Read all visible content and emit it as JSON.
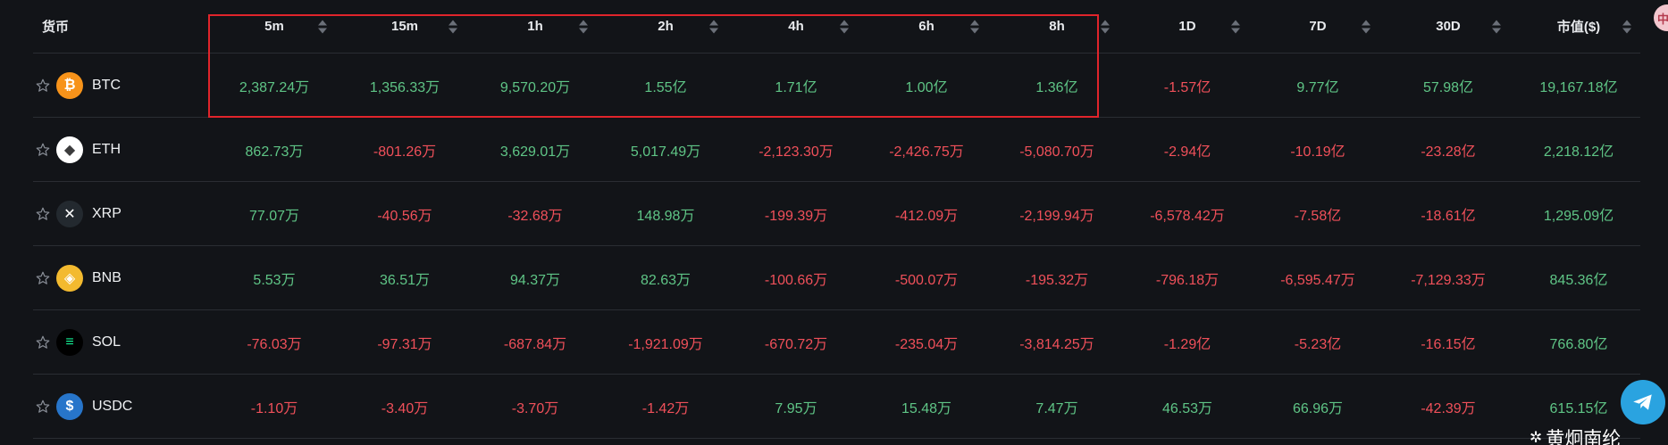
{
  "columns": [
    "货币",
    "5m",
    "15m",
    "1h",
    "2h",
    "4h",
    "6h",
    "8h",
    "1D",
    "7D",
    "30D",
    "市值($)"
  ],
  "rows": [
    {
      "symbol": "BTC",
      "logo_glyph": "₿",
      "logo_bg": "#f7931a",
      "logo_fg": "#ffffff",
      "values": [
        "2,387.24万",
        "1,356.33万",
        "9,570.20万",
        "1.55亿",
        "1.71亿",
        "1.00亿",
        "1.36亿",
        "-1.57亿",
        "9.77亿",
        "57.98亿",
        "19,167.18亿"
      ],
      "signs": [
        "pos",
        "pos",
        "pos",
        "pos",
        "pos",
        "pos",
        "pos",
        "neg",
        "pos",
        "pos",
        "pos"
      ]
    },
    {
      "symbol": "ETH",
      "logo_glyph": "◆",
      "logo_bg": "#ffffff",
      "logo_fg": "#3c3c3d",
      "values": [
        "862.73万",
        "-801.26万",
        "3,629.01万",
        "5,017.49万",
        "-2,123.30万",
        "-2,426.75万",
        "-5,080.70万",
        "-2.94亿",
        "-10.19亿",
        "-23.28亿",
        "2,218.12亿"
      ],
      "signs": [
        "pos",
        "neg",
        "pos",
        "pos",
        "neg",
        "neg",
        "neg",
        "neg",
        "neg",
        "neg",
        "pos"
      ]
    },
    {
      "symbol": "XRP",
      "logo_glyph": "✕",
      "logo_bg": "#23292f",
      "logo_fg": "#ffffff",
      "values": [
        "77.07万",
        "-40.56万",
        "-32.68万",
        "148.98万",
        "-199.39万",
        "-412.09万",
        "-2,199.94万",
        "-6,578.42万",
        "-7.58亿",
        "-18.61亿",
        "1,295.09亿"
      ],
      "signs": [
        "pos",
        "neg",
        "neg",
        "pos",
        "neg",
        "neg",
        "neg",
        "neg",
        "neg",
        "neg",
        "pos"
      ]
    },
    {
      "symbol": "BNB",
      "logo_glyph": "◈",
      "logo_bg": "#f3ba2f",
      "logo_fg": "#ffffff",
      "values": [
        "5.53万",
        "36.51万",
        "94.37万",
        "82.63万",
        "-100.66万",
        "-500.07万",
        "-195.32万",
        "-796.18万",
        "-6,595.47万",
        "-7,129.33万",
        "845.36亿"
      ],
      "signs": [
        "pos",
        "pos",
        "pos",
        "pos",
        "neg",
        "neg",
        "neg",
        "neg",
        "neg",
        "neg",
        "pos"
      ]
    },
    {
      "symbol": "SOL",
      "logo_glyph": "≡",
      "logo_bg": "#000000",
      "logo_fg": "#14f195",
      "values": [
        "-76.03万",
        "-97.31万",
        "-687.84万",
        "-1,921.09万",
        "-670.72万",
        "-235.04万",
        "-3,814.25万",
        "-1.29亿",
        "-5.23亿",
        "-16.15亿",
        "766.80亿"
      ],
      "signs": [
        "neg",
        "neg",
        "neg",
        "neg",
        "neg",
        "neg",
        "neg",
        "neg",
        "neg",
        "neg",
        "pos"
      ]
    },
    {
      "symbol": "USDC",
      "logo_glyph": "$",
      "logo_bg": "#2775ca",
      "logo_fg": "#ffffff",
      "values": [
        "-1.10万",
        "-3.40万",
        "-3.70万",
        "-1.42万",
        "7.95万",
        "15.48万",
        "7.47万",
        "46.53万",
        "66.96万",
        "-42.39万",
        "615.15亿"
      ],
      "signs": [
        "neg",
        "neg",
        "neg",
        "neg",
        "pos",
        "pos",
        "pos",
        "pos",
        "pos",
        "neg",
        "pos"
      ]
    }
  ],
  "colors": {
    "positive": "#5fc586",
    "negative": "#f0505a",
    "highlight_box": "#e0242b"
  },
  "top_badge_text": "中",
  "watermark_text": "黄炯南纶"
}
